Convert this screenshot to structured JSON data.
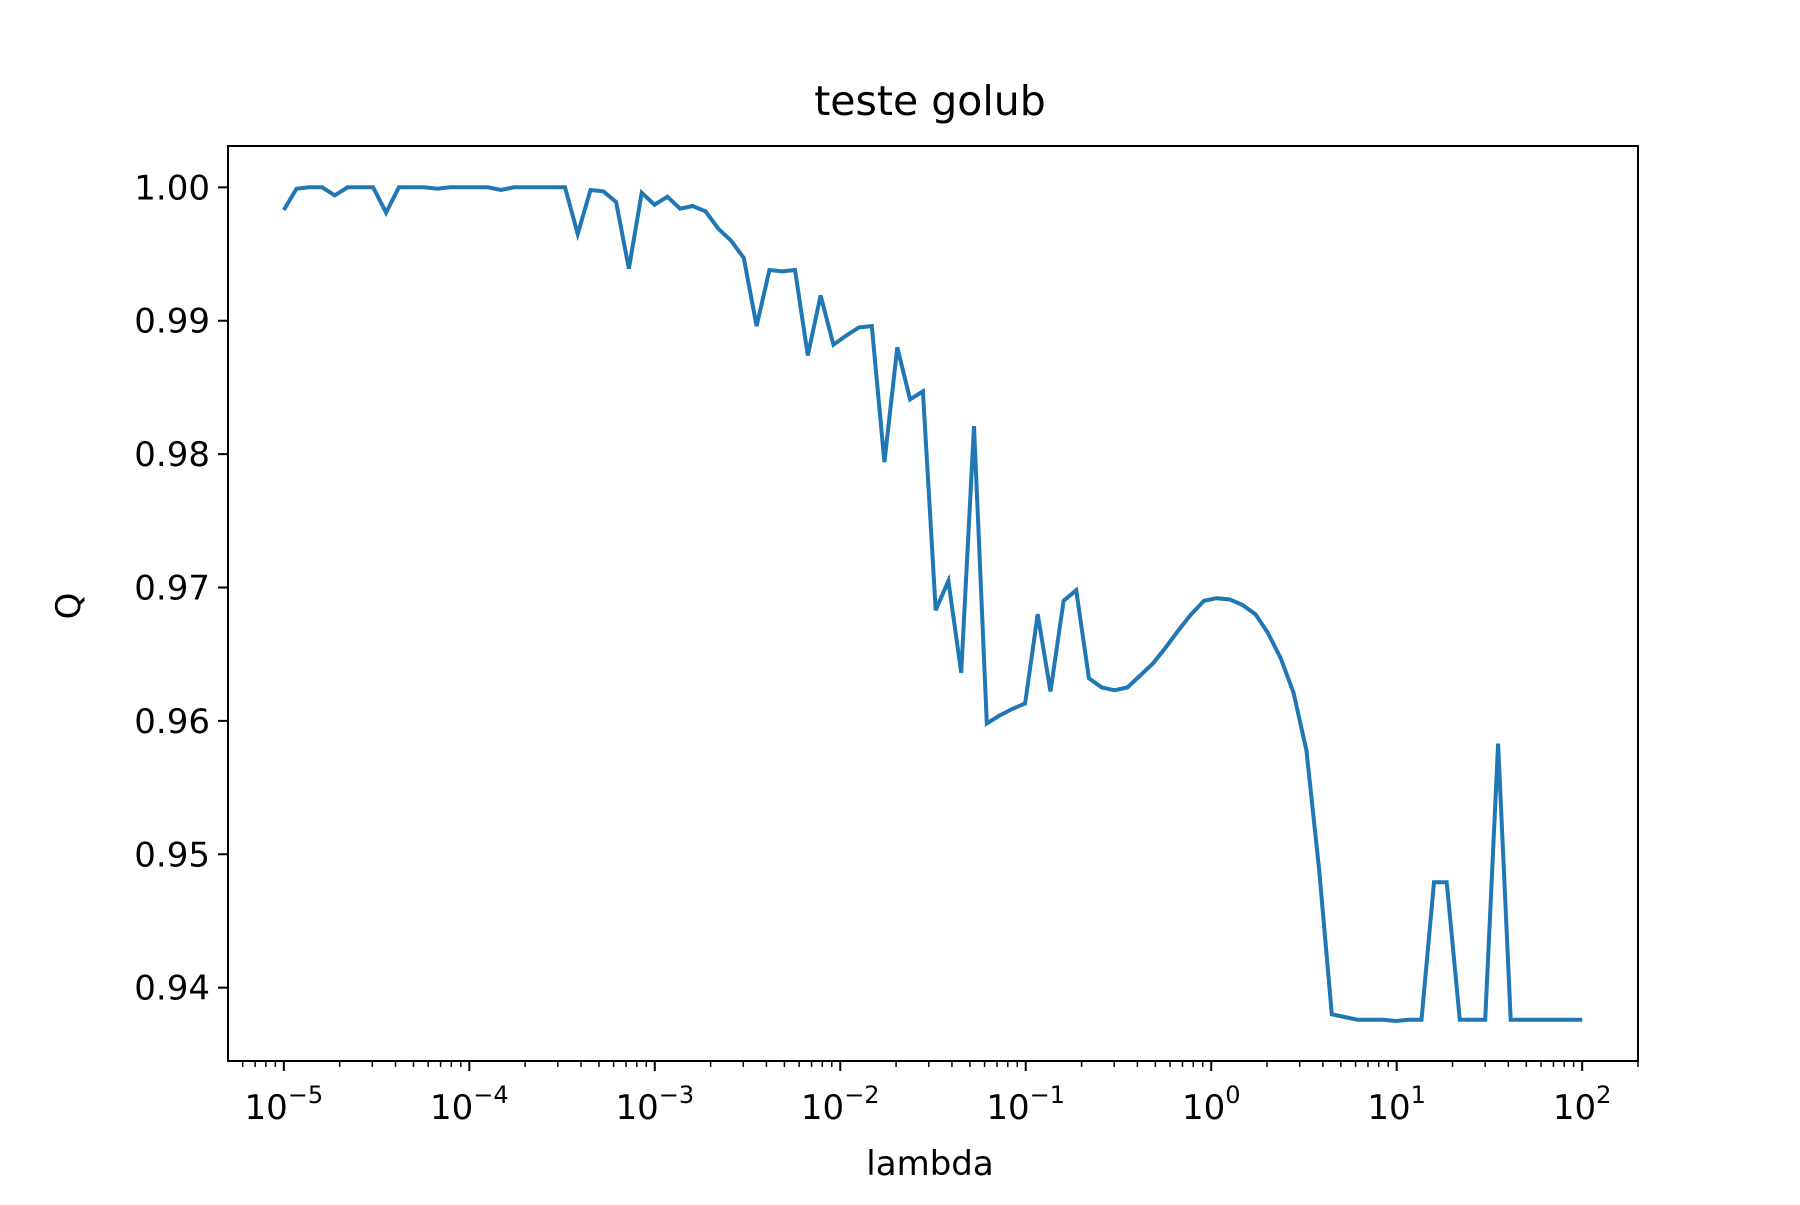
{
  "chart_data": {
    "type": "line",
    "title": "teste golub",
    "xlabel": "lambda",
    "ylabel": "Q",
    "xscale": "log",
    "xlim": [
      5e-06,
      200
    ],
    "ylim": [
      0.9345,
      1.0031
    ],
    "grid": false,
    "color": "#1f77b4",
    "x_ticks": [
      {
        "base": "10",
        "exp": "−5",
        "value": 1e-05
      },
      {
        "base": "10",
        "exp": "−4",
        "value": 0.0001
      },
      {
        "base": "10",
        "exp": "−3",
        "value": 0.001
      },
      {
        "base": "10",
        "exp": "−2",
        "value": 0.01
      },
      {
        "base": "10",
        "exp": "−1",
        "value": 0.1
      },
      {
        "base": "10",
        "exp": "0",
        "value": 1
      },
      {
        "base": "10",
        "exp": "1",
        "value": 10
      },
      {
        "base": "10",
        "exp": "2",
        "value": 100
      }
    ],
    "y_ticks": [
      {
        "label": "0.94",
        "value": 0.94
      },
      {
        "label": "0.95",
        "value": 0.95
      },
      {
        "label": "0.96",
        "value": 0.96
      },
      {
        "label": "0.97",
        "value": 0.97
      },
      {
        "label": "0.98",
        "value": 0.98
      },
      {
        "label": "0.99",
        "value": 0.99
      },
      {
        "label": "1.00",
        "value": 1.0
      }
    ],
    "series": [
      {
        "x": [
          1e-05,
          1.17e-05,
          1.37e-05,
          1.61e-05,
          1.88e-05,
          2.21e-05,
          2.59e-05,
          3.03e-05,
          3.56e-05,
          4.17e-05,
          4.89e-05,
          5.72e-05,
          6.71e-05,
          7.86e-05,
          9.21e-05,
          0.000108,
          0.000126,
          0.000148,
          0.000174,
          0.000204,
          0.000239,
          0.00028,
          0.000328,
          0.000384,
          0.00045,
          0.000528,
          0.000619,
          0.000725,
          0.00085,
          0.000996,
          0.00117,
          0.00137,
          0.0016,
          0.00188,
          0.0022,
          0.00258,
          0.00302,
          0.00354,
          0.00415,
          0.00487,
          0.0057,
          0.00668,
          0.00783,
          0.00918,
          0.0108,
          0.0126,
          0.0148,
          0.0173,
          0.0203,
          0.0238,
          0.0279,
          0.0327,
          0.0383,
          0.0449,
          0.0526,
          0.0617,
          0.0722,
          0.0847,
          0.0992,
          0.116,
          0.136,
          0.16,
          0.187,
          0.219,
          0.257,
          0.301,
          0.353,
          0.414,
          0.485,
          0.568,
          0.666,
          0.78,
          0.914,
          1.07,
          1.26,
          1.47,
          1.73,
          2.02,
          2.37,
          2.78,
          3.26,
          3.82,
          4.47,
          5.24,
          6.14,
          7.2,
          8.44,
          9.89,
          11.6,
          13.6,
          15.9,
          18.6,
          21.9,
          25.6,
          30.0,
          35.2,
          41.2,
          48.3,
          56.6,
          66.3,
          77.7,
          91.0,
          100.0
        ],
        "y": [
          0.9983,
          0.9999,
          1.0,
          1.0,
          0.9994,
          1.0,
          1.0,
          1.0,
          0.9981,
          1.0,
          1.0,
          1.0,
          0.9999,
          1.0,
          1.0,
          1.0,
          1.0,
          0.9998,
          1.0,
          1.0,
          1.0,
          1.0,
          1.0,
          0.9965,
          0.9998,
          0.9997,
          0.9989,
          0.9939,
          0.9996,
          0.9987,
          0.9993,
          0.9984,
          0.9986,
          0.9982,
          0.9969,
          0.996,
          0.9947,
          0.9896,
          0.9938,
          0.9937,
          0.9938,
          0.9874,
          0.9919,
          0.9882,
          0.9889,
          0.9895,
          0.9896,
          0.9794,
          0.988,
          0.9841,
          0.9847,
          0.9683,
          0.9705,
          0.9636,
          0.9821,
          0.9598,
          0.9604,
          0.9609,
          0.9613,
          0.968,
          0.9622,
          0.969,
          0.9698,
          0.9632,
          0.9625,
          0.9623,
          0.9625,
          0.9634,
          0.9643,
          0.9655,
          0.9668,
          0.968,
          0.969,
          0.9692,
          0.9691,
          0.9687,
          0.968,
          0.9666,
          0.9647,
          0.9621,
          0.9578,
          0.9488,
          0.938,
          0.9378,
          0.9376,
          0.9376,
          0.9376,
          0.9375,
          0.9376,
          0.9376,
          0.9479,
          0.9479,
          0.9376,
          0.9376,
          0.9376,
          0.9583,
          0.9376,
          0.9376,
          0.9376,
          0.9376,
          0.9376,
          0.9376,
          0.9376
        ]
      }
    ]
  }
}
